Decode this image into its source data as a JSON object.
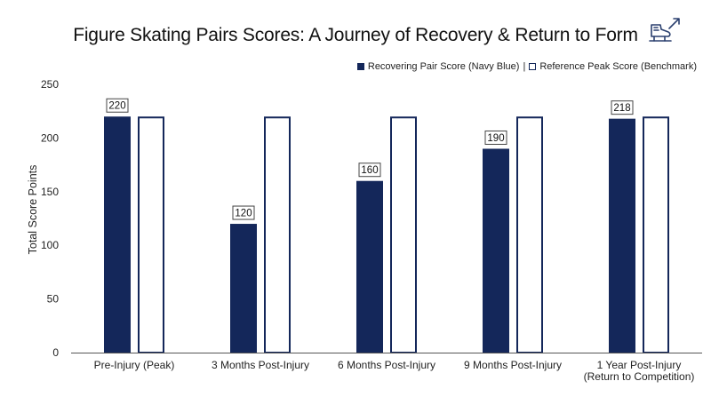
{
  "chart_data": {
    "type": "bar",
    "title": "Figure Skating Pairs Scores: A Journey of Recovery & Return to Form",
    "xlabel": "",
    "ylabel": "Total Score Points",
    "ylim": [
      0,
      250
    ],
    "yticks": [
      0,
      50,
      100,
      150,
      200,
      250
    ],
    "grid": false,
    "legend_position": "top-right",
    "categories": [
      [
        "Pre-Injury (Peak)"
      ],
      [
        "3 Months Post-Injury"
      ],
      [
        "6 Months Post-Injury"
      ],
      [
        "9 Months Post-Injury"
      ],
      [
        "1 Year Post-Injury",
        "(Return to Competition)"
      ]
    ],
    "series": [
      {
        "name": "Recovering Pair Score (Navy Blue)",
        "values": [
          220,
          120,
          160,
          190,
          218
        ],
        "color": "#14275a",
        "style": "filled",
        "data_labels": true
      },
      {
        "name": "Reference Peak Score (Benchmark)",
        "values": [
          220,
          220,
          220,
          220,
          220
        ],
        "color": "#14275a",
        "style": "outline",
        "data_labels": false
      }
    ],
    "legend_separator": "|"
  },
  "icons": {
    "header_icon": "ice-skate-upward-arrow-icon"
  }
}
